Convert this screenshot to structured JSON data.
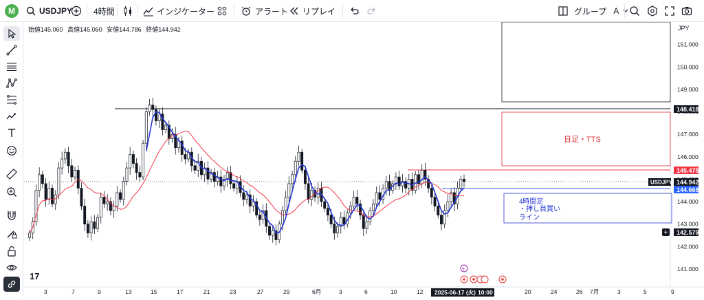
{
  "header": {
    "avatar_letter": "M",
    "symbol": "USDJPY",
    "timeframe": "4時間",
    "indicators_label": "インジケーター",
    "alert_label": "アラート",
    "replay_label": "リプレイ",
    "group_label": "グループ",
    "group_value": "A"
  },
  "ohlc": {
    "open": "始値145.060",
    "high": "高値145.060",
    "low": "安値144.786",
    "close": "終値144.942"
  },
  "price_axis": {
    "currency": "JPY",
    "ticks": [
      "151.000",
      "150.000",
      "149.000",
      "148.000",
      "147.000",
      "146.000",
      "145.000",
      "144.000",
      "143.000",
      "142.000",
      "141.000"
    ],
    "tick_values": [
      151,
      150,
      149,
      148,
      147,
      146,
      145,
      144,
      143,
      142,
      141
    ],
    "labels": {
      "black_line": "148.418",
      "red_line": "145.475",
      "symbol_tag": "USDJPY",
      "last_price": "144.942",
      "blue_line": "144.668",
      "crosshair": "142.579"
    },
    "label_colors": {
      "black_line": "#131722",
      "red_line": "#f23645",
      "symbol_tag": "#131722",
      "last_price": "#131722",
      "blue_line": "#2962ff",
      "crosshair": "#131722"
    }
  },
  "time_axis": {
    "ticks": [
      "3",
      "7",
      "9",
      "13",
      "15",
      "17",
      "21",
      "23",
      "27",
      "29",
      "6月",
      "3",
      "6",
      "10",
      "12",
      "20",
      "24",
      "26",
      "7月",
      "3",
      "5",
      "9"
    ],
    "crosshair_date": "2025-06-17 (火)",
    "crosshair_time": "10:00"
  },
  "annotations": {
    "daily_title": "日足・TTS",
    "h4_line1": "4時間足",
    "h4_line2": "・押し目買い",
    "h4_line3": "ライン"
  },
  "chart_data": {
    "type": "candlestick",
    "symbol": "USDJPY",
    "timeframe": "4時間",
    "ylim": [
      140.2,
      152.0
    ],
    "last_price": 144.942,
    "horizontal_lines": [
      {
        "price": 148.418,
        "color": "#131722"
      },
      {
        "price": 145.475,
        "color": "#f23645"
      },
      {
        "price": 144.668,
        "color": "#2962ff"
      }
    ],
    "close_series": [
      142.6,
      143.1,
      144.5,
      145.2,
      144.8,
      144.1,
      144.6,
      143.9,
      144.3,
      145.5,
      145.9,
      146.2,
      145.6,
      145.1,
      145.4,
      144.6,
      143.8,
      143.0,
      142.6,
      143.1,
      142.8,
      143.3,
      144.2,
      143.9,
      144.0,
      143.6,
      143.8,
      144.4,
      144.1,
      144.9,
      145.5,
      146.1,
      145.7,
      145.3,
      145.1,
      146.6,
      148.0,
      148.3,
      148.1,
      147.6,
      147.9,
      147.2,
      147.4,
      146.8,
      147.0,
      146.4,
      146.7,
      146.1,
      145.9,
      146.2,
      145.6,
      145.4,
      145.8,
      145.2,
      145.5,
      145.0,
      145.3,
      144.9,
      145.1,
      144.7,
      145.0,
      145.3,
      144.8,
      144.6,
      144.9,
      144.4,
      144.1,
      144.3,
      143.8,
      144.0,
      143.4,
      143.2,
      143.6,
      142.9,
      142.5,
      142.7,
      142.3,
      143.0,
      143.6,
      144.2,
      144.8,
      145.2,
      145.8,
      146.2,
      145.4,
      144.8,
      144.1,
      144.5,
      144.2,
      144.6,
      144.0,
      143.7,
      143.4,
      143.0,
      142.6,
      142.9,
      143.3,
      143.0,
      143.5,
      143.8,
      144.2,
      143.9,
      143.4,
      142.8,
      143.1,
      143.6,
      143.9,
      144.4,
      144.1,
      144.6,
      144.9,
      144.5,
      144.8,
      145.1,
      144.7,
      144.9,
      144.6,
      145.0,
      144.5,
      145.2,
      144.8,
      145.4,
      145.0,
      144.6,
      144.2,
      143.8,
      143.4,
      143.0,
      143.6,
      144.0,
      144.4,
      143.9,
      144.6,
      145.0,
      144.9
    ],
    "series": [
      {
        "name": "",
        "color": "#2536d6"
      },
      {
        "name": "",
        "color": "#f23645"
      }
    ]
  },
  "colors": {
    "up": "#131722",
    "down": "#131722",
    "fast_ma": "#2536d6",
    "slow_ma": "#f23645",
    "accent": "#2962ff",
    "red_box": "#e03030",
    "blue_box": "#2536d6"
  }
}
